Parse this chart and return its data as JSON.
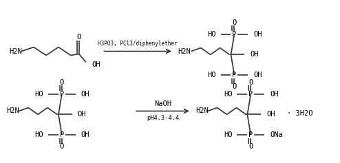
{
  "bg_color": "#ffffff",
  "line_color": "#333333",
  "text_color": "#000000",
  "figsize": [
    4.94,
    2.37
  ],
  "dpi": 100,
  "reaction1_arrow_top": "H3PO3, PCl3/diphenylether",
  "reaction2_arrow_top": "NaOH",
  "reaction2_arrow_bot": "pH4.3-4.4",
  "h2n": "H2N",
  "oh": "OH",
  "ho": "HO",
  "ona": "ONa",
  "water": "· 3H2O",
  "p_sym": "P",
  "o_sym": "O"
}
